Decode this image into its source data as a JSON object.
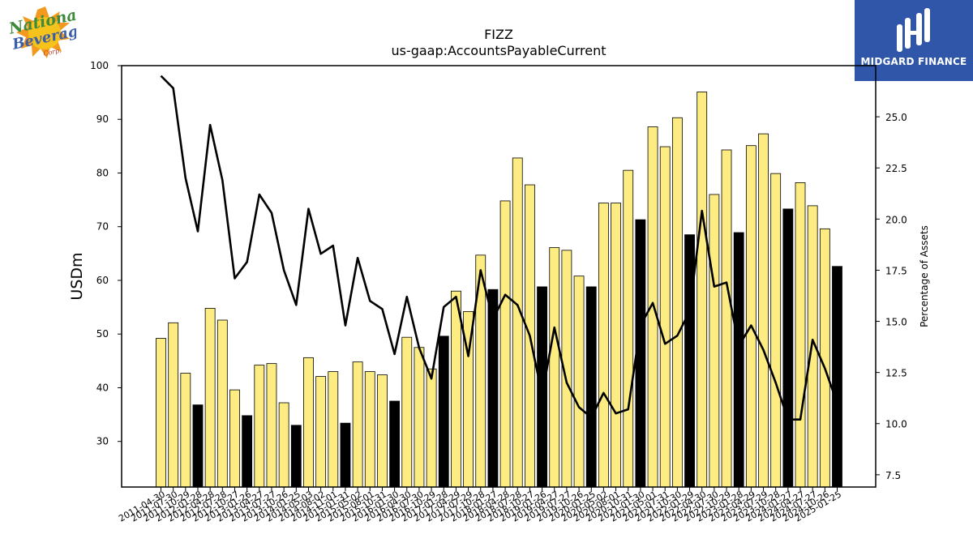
{
  "logos": {
    "left_icon": "national-beverage-logo",
    "left_text": "National Beverage Corp.",
    "right_icon": "midgard-finance-logo",
    "right_text": "MIDGARD FINANCE"
  },
  "chart_data": {
    "type": "bar",
    "title": "FIZZ",
    "subtitle": "us-gaap:AccountsPayableCurrent",
    "ylabel": "USDm",
    "y2label": "Percentage of Assets",
    "ylim": [
      21.5,
      100
    ],
    "y2lim": [
      6.9,
      27.5
    ],
    "yticks": [
      30,
      40,
      50,
      60,
      70,
      80,
      90,
      100
    ],
    "y2ticks": [
      "7.5",
      "10.0",
      "12.5",
      "15.0",
      "17.5",
      "20.0",
      "22.5",
      "25.0"
    ],
    "grid": false,
    "colors": {
      "bar": "#fcec82",
      "bar_highlight": "#000000",
      "line": "#000000",
      "edge": "#000000"
    },
    "categories": [
      "2011-04-30",
      "2011-07-30",
      "2011-10-29",
      "2012-01-28",
      "2012-04-28",
      "2012-07-28",
      "2012-10-27",
      "2013-01-26",
      "2013-04-27",
      "2013-07-27",
      "2013-10-26",
      "2014-01-25",
      "2014-05-03",
      "2014-08-02",
      "2014-11-01",
      "2015-01-31",
      "2015-05-02",
      "2015-08-01",
      "2015-10-31",
      "2016-01-30",
      "2016-04-30",
      "2016-07-30",
      "2016-10-29",
      "2017-01-28",
      "2017-04-29",
      "2017-07-29",
      "2017-10-28",
      "2018-01-27",
      "2018-04-28",
      "2018-07-28",
      "2018-10-27",
      "2019-01-26",
      "2019-04-27",
      "2019-07-27",
      "2019-10-26",
      "2020-01-25",
      "2020-05-02",
      "2020-08-01",
      "2020-10-31",
      "2021-01-30",
      "2021-05-01",
      "2021-07-31",
      "2021-10-30",
      "2022-01-29",
      "2022-04-30",
      "2022-07-30",
      "2022-10-29",
      "2023-01-28",
      "2023-04-29",
      "2023-07-29",
      "2023-10-28",
      "2024-01-27",
      "2024-04-27",
      "2024-07-27",
      "2024-10-26",
      "2025-01-25"
    ],
    "xtick_labels": [
      "2011-04-30",
      "2011-07-30",
      "2011-10-29",
      "2012-01-28",
      "2012-04-28",
      "2012-07-28",
      "2012-10-27",
      "2013-01-26",
      "2013-04-27",
      "2013-07-27",
      "2013-10-26",
      "2014-01-25",
      "2014-05-03",
      "2014-08-02",
      "2014-11-01",
      "2015-01-31",
      "2015-05-02",
      "2015-08-01",
      "2015-10-31",
      "2016-01-30",
      "2016-04-30",
      "2016-07-30",
      "2016-10-29",
      "2017-01-28",
      "2017-04-29",
      "2017-07-29",
      "2017-10-28",
      "2018-01-27",
      "2018-04-28",
      "2018-07-28",
      "2018-10-27",
      "2019-01-26",
      "2019-04-27",
      "2019-07-27",
      "2019-10-26",
      "2020-01-25",
      "2020-05-02",
      "2020-08-01",
      "2020-10-31",
      "2021-01-30",
      "2021-05-01",
      "2021-07-31",
      "2021-10-30",
      "2022-01-29",
      "2022-04-30",
      "2022-07-30",
      "2022-10-29",
      "2023-01-28",
      "2023-04-29",
      "2023-07-29",
      "2023-10-28",
      "2024-01-27",
      "2024-04-27",
      "2024-07-27",
      "2024-10-26",
      "2025-01-25"
    ],
    "highlight_indices": [
      3,
      7,
      11,
      15,
      19,
      23,
      27,
      31,
      35,
      39,
      43,
      47,
      51,
      55
    ],
    "series": [
      {
        "type": "bar",
        "axis": "left",
        "values": [
          49.2,
          52.1,
          42.7,
          36.8,
          54.8,
          52.6,
          39.6,
          34.8,
          44.2,
          44.5,
          37.2,
          33.0,
          45.6,
          42.1,
          43.0,
          33.4,
          44.8,
          43.0,
          42.4,
          37.5,
          49.4,
          47.5,
          43.5,
          49.6,
          58.0,
          54.2,
          64.7,
          58.3,
          74.8,
          82.8,
          77.8,
          58.8,
          66.1,
          65.6,
          60.8,
          58.8,
          74.4,
          74.4,
          80.5,
          71.3,
          88.6,
          84.9,
          90.3,
          68.5,
          95.1,
          76.0,
          84.3,
          68.9,
          85.1,
          87.3,
          79.9,
          73.3,
          78.2,
          73.9,
          69.6,
          62.6
        ]
      },
      {
        "type": "line",
        "axis": "right",
        "values": [
          27.0,
          26.4,
          22.0,
          19.4,
          24.6,
          21.9,
          17.1,
          17.9,
          21.2,
          20.3,
          17.5,
          15.8,
          20.5,
          18.3,
          18.7,
          14.8,
          18.1,
          16.0,
          15.6,
          13.4,
          16.2,
          13.7,
          12.2,
          15.7,
          16.2,
          13.3,
          17.5,
          15.1,
          16.3,
          15.8,
          14.3,
          11.4,
          14.7,
          12.0,
          10.8,
          10.3,
          11.5,
          10.5,
          10.7,
          14.8,
          15.9,
          13.9,
          14.3,
          15.5,
          20.4,
          16.7,
          16.9,
          13.8,
          14.8,
          13.6,
          12.0,
          10.2,
          10.2,
          14.1,
          12.7,
          11.0
        ]
      }
    ]
  }
}
